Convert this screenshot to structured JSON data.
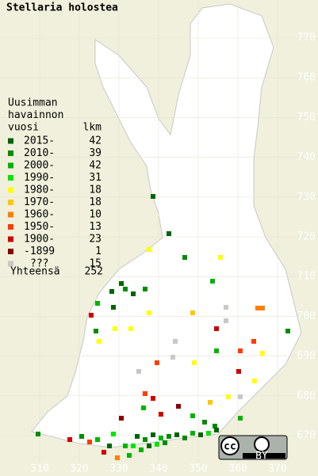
{
  "title": "Stellaria holostea",
  "legend": {
    "header": [
      "Uusimman",
      "havainnon",
      "vuosi"
    ],
    "count_header": "lkm",
    "rows": [
      {
        "label": "2015-",
        "count": 42,
        "color": "#006400"
      },
      {
        "label": "2010-",
        "count": 39,
        "color": "#008c00"
      },
      {
        "label": "2000-",
        "count": 42,
        "color": "#00b400"
      },
      {
        "label": "1990-",
        "count": 31,
        "color": "#00e600"
      },
      {
        "label": "1980-",
        "count": 18,
        "color": "#ffff00"
      },
      {
        "label": "1970-",
        "count": 18,
        "color": "#ffc800"
      },
      {
        "label": "1960-",
        "count": 10,
        "color": "#ff8000"
      },
      {
        "label": "1950-",
        "count": 13,
        "color": "#ff3c00"
      },
      {
        "label": "1900-",
        "count": 23,
        "color": "#d20000"
      },
      {
        "label": "-1899",
        "count": 1,
        "color": "#8c0000"
      },
      {
        "label": "???",
        "count": 15,
        "color": "#c8c8c8"
      }
    ],
    "total_label": "Yhteensä",
    "total": 252
  },
  "xticks": [
    310,
    320,
    330,
    340,
    350,
    360,
    370
  ],
  "yticks": [
    670,
    680,
    690,
    700,
    710,
    720,
    730,
    740,
    750,
    760,
    770
  ],
  "license": {
    "cc": "cc",
    "by": "BY"
  }
}
